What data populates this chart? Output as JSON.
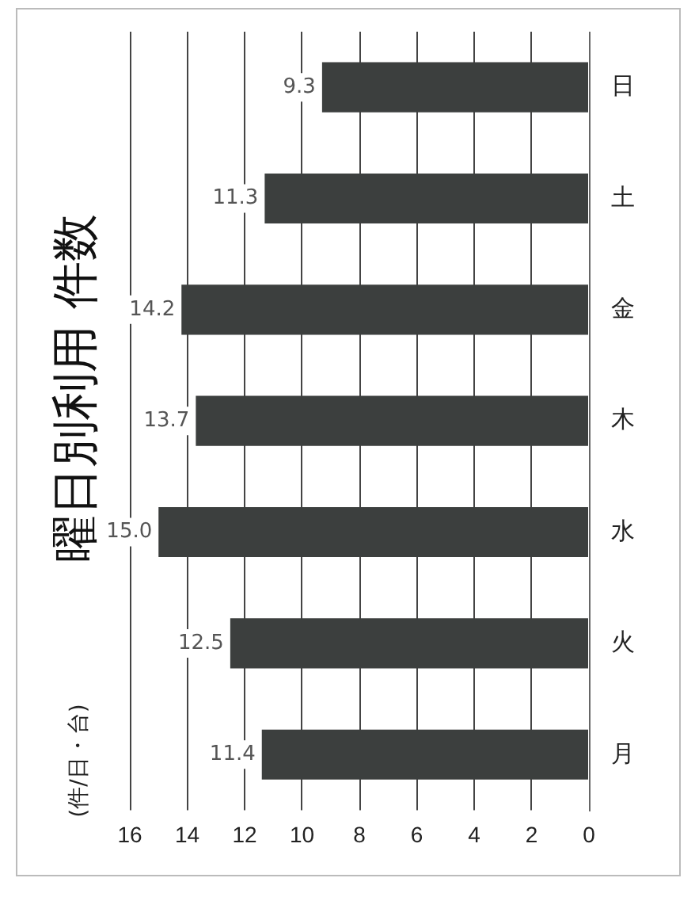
{
  "chart_data": {
    "type": "bar",
    "orientation": "horizontal",
    "title": "曜日別利用 件数",
    "annotations": [
      "(件/日・台)"
    ],
    "categories": [
      "日",
      "土",
      "金",
      "木",
      "水",
      "火",
      "月"
    ],
    "values": [
      9.3,
      11.3,
      14.2,
      13.7,
      15.0,
      12.5,
      11.4
    ],
    "value_labels": [
      "9.3",
      "11.3",
      "14.2",
      "13.7",
      "15.0",
      "12.5",
      "11.4"
    ],
    "color": "#3c3f3e",
    "xlim": [
      16,
      0
    ],
    "xticks": [
      16,
      14,
      12,
      10,
      8,
      6,
      4,
      2,
      0
    ],
    "grid": "x"
  }
}
